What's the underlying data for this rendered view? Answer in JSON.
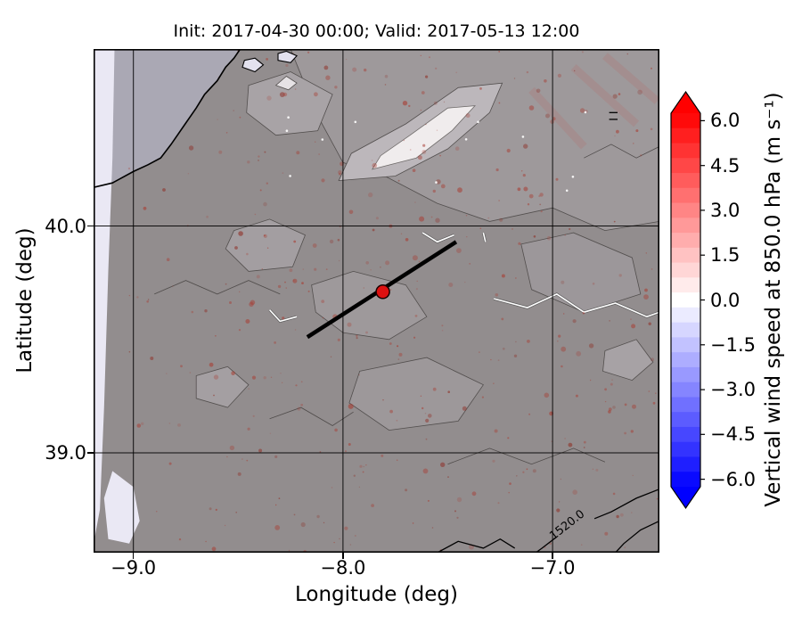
{
  "figure": {
    "title": "Init: 2017-04-30 00:00; Valid: 2017-05-13 12:00",
    "xlabel": "Longitude (deg)",
    "ylabel": "Latitude (deg)"
  },
  "chart_data": {
    "type": "heatmap",
    "subtype": "filled-contour map with terrain shading",
    "title": "Init: 2017-04-30 00:00; Valid: 2017-05-13 12:00",
    "xlabel": "Longitude (deg)",
    "ylabel": "Latitude (deg)",
    "xlim": [
      -9.19,
      -6.49
    ],
    "ylim": [
      38.56,
      40.78
    ],
    "xticks": [
      -9.0,
      -8.0,
      -7.0
    ],
    "yticks": [
      40.0,
      39.0
    ],
    "grid": true,
    "colorbar": {
      "label": "Vertical wind speed at 850.0 hPa (m s⁻¹)",
      "ticks": [
        6.0,
        4.5,
        3.0,
        1.5,
        0.0,
        -1.5,
        -3.0,
        -4.5,
        -6.0
      ],
      "vmin": -6.25,
      "vmax": 6.25,
      "cmap": "bwr",
      "extend": "both"
    },
    "field_summary": "Vertical wind speed mostly near 0 m/s (white/gray) over shaded terrain; scattered weak reddish updraft speckles (~0.5-1.5 m/s), pale near-zero band along the Atlantic coast at left.",
    "overlays": {
      "transect_line": {
        "lon": [
          -8.17,
          -7.46
        ],
        "lat": [
          39.51,
          39.93
        ]
      },
      "marker": {
        "lon": -7.81,
        "lat": 39.71
      },
      "contour_label": "1520.0"
    },
    "map_features": {
      "base_fill": "#908f91",
      "sea_fill": "#aaa8b4",
      "pale_fill": "#eae8f4",
      "coast": [
        [
          -9.19,
          40.17
        ],
        [
          -9.1,
          40.19
        ],
        [
          -9.0,
          40.24
        ],
        [
          -8.93,
          40.27
        ],
        [
          -8.87,
          40.3
        ],
        [
          -8.82,
          40.36
        ],
        [
          -8.76,
          40.44
        ],
        [
          -8.7,
          40.52
        ],
        [
          -8.66,
          40.58
        ],
        [
          -8.6,
          40.64
        ],
        [
          -8.56,
          40.7
        ],
        [
          -8.52,
          40.74
        ],
        [
          -8.49,
          40.78
        ]
      ],
      "strip": [
        [
          -9.19,
          40.78
        ],
        [
          -9.09,
          40.78
        ],
        [
          -9.1,
          40.3
        ],
        [
          -9.12,
          39.8
        ],
        [
          -9.14,
          39.2
        ],
        [
          -9.16,
          38.75
        ],
        [
          -9.19,
          38.6
        ]
      ],
      "estuary_patch": [
        [
          -9.1,
          38.92
        ],
        [
          -9.0,
          38.85
        ],
        [
          -8.97,
          38.7
        ],
        [
          -9.02,
          38.6
        ],
        [
          -9.12,
          38.62
        ],
        [
          -9.14,
          38.8
        ]
      ],
      "lagoons": [
        {
          "pts": [
            [
              -8.48,
              40.7
            ],
            [
              -8.42,
              40.68
            ],
            [
              -8.38,
              40.71
            ],
            [
              -8.42,
              40.74
            ],
            [
              -8.47,
              40.73
            ]
          ]
        },
        {
          "pts": [
            [
              -8.31,
              40.73
            ],
            [
              -8.25,
              40.72
            ],
            [
              -8.22,
              40.75
            ],
            [
              -8.27,
              40.77
            ],
            [
              -8.31,
              40.76
            ]
          ]
        }
      ],
      "patches": [
        {
          "fill": "#9c9b9f",
          "pts": [
            [
              -8.25,
              40.78
            ],
            [
              -6.49,
              40.78
            ],
            [
              -6.49,
              40.02
            ],
            [
              -6.75,
              39.98
            ],
            [
              -7.0,
              40.08
            ],
            [
              -7.3,
              40.02
            ],
            [
              -7.55,
              40.1
            ],
            [
              -7.8,
              40.22
            ],
            [
              -8.0,
              40.28
            ],
            [
              -8.1,
              40.45
            ],
            [
              -8.18,
              40.62
            ]
          ]
        },
        {
          "fill": "#a7a6aa",
          "pts": [
            [
              -8.45,
              40.62
            ],
            [
              -8.25,
              40.68
            ],
            [
              -8.05,
              40.58
            ],
            [
              -8.12,
              40.42
            ],
            [
              -8.32,
              40.4
            ],
            [
              -8.46,
              40.5
            ]
          ]
        },
        {
          "fill": "#bcbbc0",
          "pts": [
            [
              -8.02,
              40.2
            ],
            [
              -7.75,
              40.22
            ],
            [
              -7.5,
              40.34
            ],
            [
              -7.3,
              40.5
            ],
            [
              -7.24,
              40.63
            ],
            [
              -7.45,
              40.61
            ],
            [
              -7.7,
              40.45
            ],
            [
              -7.96,
              40.32
            ]
          ]
        },
        {
          "fill": "#f3f3f5",
          "stroke": "#6a6a6a",
          "pts": [
            [
              -7.86,
              40.25
            ],
            [
              -7.65,
              40.3
            ],
            [
              -7.48,
              40.42
            ],
            [
              -7.37,
              40.53
            ],
            [
              -7.5,
              40.52
            ],
            [
              -7.68,
              40.4
            ],
            [
              -7.82,
              40.31
            ]
          ]
        },
        {
          "fill": "#e8e8ec",
          "pts": [
            [
              -8.32,
              40.62
            ],
            [
              -8.26,
              40.6
            ],
            [
              -8.22,
              40.63
            ],
            [
              -8.27,
              40.66
            ]
          ]
        },
        {
          "fill": "#a2a1a5",
          "pts": [
            [
              -8.52,
              39.98
            ],
            [
              -8.35,
              40.03
            ],
            [
              -8.18,
              39.96
            ],
            [
              -8.24,
              39.82
            ],
            [
              -8.45,
              39.8
            ],
            [
              -8.56,
              39.9
            ]
          ]
        },
        {
          "fill": "#9c9b9f",
          "pts": [
            [
              -8.15,
              39.74
            ],
            [
              -7.95,
              39.8
            ],
            [
              -7.7,
              39.74
            ],
            [
              -7.6,
              39.6
            ],
            [
              -7.78,
              39.5
            ],
            [
              -8.0,
              39.53
            ],
            [
              -8.13,
              39.62
            ]
          ]
        },
        {
          "fill": "#9a999d",
          "pts": [
            [
              -7.15,
              39.92
            ],
            [
              -6.9,
              39.97
            ],
            [
              -6.62,
              39.86
            ],
            [
              -6.58,
              39.7
            ],
            [
              -6.85,
              39.62
            ],
            [
              -7.1,
              39.72
            ]
          ]
        },
        {
          "fill": "#9b9a9e",
          "pts": [
            [
              -7.92,
              39.36
            ],
            [
              -7.6,
              39.42
            ],
            [
              -7.33,
              39.3
            ],
            [
              -7.45,
              39.14
            ],
            [
              -7.78,
              39.1
            ],
            [
              -7.97,
              39.22
            ]
          ]
        },
        {
          "fill": "#a3a2a6",
          "pts": [
            [
              -8.7,
              39.34
            ],
            [
              -8.55,
              39.38
            ],
            [
              -8.45,
              39.3
            ],
            [
              -8.55,
              39.2
            ],
            [
              -8.7,
              39.24
            ]
          ]
        },
        {
          "fill": "#a6a5a9",
          "pts": [
            [
              -6.75,
              39.45
            ],
            [
              -6.6,
              39.5
            ],
            [
              -6.52,
              39.4
            ],
            [
              -6.62,
              39.32
            ],
            [
              -6.76,
              39.36
            ]
          ]
        }
      ],
      "squiggles": [
        [
          [
            -8.9,
            39.7
          ],
          [
            -8.75,
            39.76
          ],
          [
            -8.6,
            39.7
          ],
          [
            -8.45,
            39.76
          ],
          [
            -8.3,
            39.7
          ]
        ],
        [
          [
            -7.5,
            38.95
          ],
          [
            -7.3,
            39.02
          ],
          [
            -7.1,
            38.95
          ],
          [
            -6.9,
            39.02
          ],
          [
            -6.75,
            38.96
          ]
        ],
        [
          [
            -8.35,
            39.15
          ],
          [
            -8.2,
            39.2
          ],
          [
            -8.05,
            39.12
          ],
          [
            -7.95,
            39.18
          ]
        ],
        [
          [
            -6.49,
            40.35
          ],
          [
            -6.6,
            40.3
          ],
          [
            -6.72,
            40.36
          ],
          [
            -6.85,
            40.3
          ]
        ]
      ],
      "black_contours": [
        [
          [
            -6.49,
            38.84
          ],
          [
            -6.6,
            38.8
          ],
          [
            -6.72,
            38.74
          ],
          [
            -6.8,
            38.71
          ]
        ],
        [
          [
            -6.98,
            38.63
          ],
          [
            -7.05,
            38.58
          ],
          [
            -7.08,
            38.56
          ]
        ],
        [
          [
            -6.49,
            38.7
          ],
          [
            -6.58,
            38.66
          ],
          [
            -6.66,
            38.6
          ],
          [
            -6.7,
            38.56
          ]
        ],
        [
          [
            -7.55,
            38.56
          ],
          [
            -7.45,
            38.61
          ],
          [
            -7.33,
            38.58
          ],
          [
            -7.25,
            38.62
          ],
          [
            -7.18,
            38.58
          ]
        ],
        [
          [
            -6.73,
            40.5
          ],
          [
            -6.69,
            40.5
          ]
        ],
        [
          [
            -6.73,
            40.47
          ],
          [
            -6.69,
            40.47
          ]
        ]
      ],
      "rivers": [
        [
          [
            -7.28,
            39.68
          ],
          [
            -7.12,
            39.64
          ],
          [
            -6.98,
            39.7
          ],
          [
            -6.85,
            39.62
          ],
          [
            -6.7,
            39.66
          ],
          [
            -6.55,
            39.6
          ],
          [
            -6.49,
            39.62
          ]
        ],
        [
          [
            -7.62,
            39.97
          ],
          [
            -7.55,
            39.93
          ],
          [
            -7.47,
            39.96
          ]
        ],
        [
          [
            -8.35,
            39.63
          ],
          [
            -8.3,
            39.58
          ],
          [
            -8.22,
            39.6
          ]
        ],
        [
          [
            -7.33,
            39.97
          ],
          [
            -7.32,
            39.93
          ]
        ]
      ],
      "red_streaks": [
        [
          [
            -6.9,
            40.7
          ],
          [
            -6.6,
            40.45
          ]
        ],
        [
          [
            -6.75,
            40.75
          ],
          [
            -6.5,
            40.55
          ]
        ],
        [
          [
            -7.1,
            40.6
          ],
          [
            -6.85,
            40.35
          ]
        ]
      ],
      "speckles": {
        "seed": 7,
        "attempts": 480
      }
    }
  }
}
